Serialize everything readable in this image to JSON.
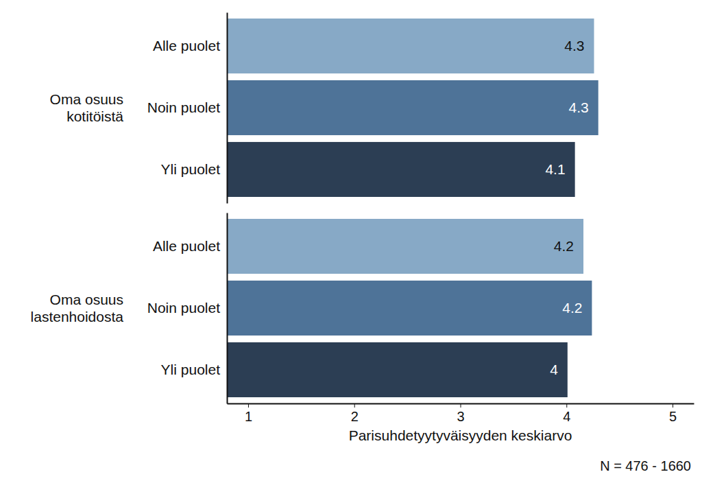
{
  "chart_data": [
    {
      "type": "bar",
      "orientation": "horizontal",
      "title": "Oma osuus kotitöistä",
      "categories": [
        "Alle puolet",
        "Noin puolet",
        "Yli puolet"
      ],
      "values": [
        4.26,
        4.3,
        4.08
      ],
      "value_labels": [
        "4.3",
        "4.3",
        "4.1"
      ],
      "colors": [
        "#87a9c6",
        "#4e7398",
        "#2c3e54"
      ],
      "xlim": [
        0.8,
        5.2
      ],
      "data_labels": true,
      "tick_labels": false,
      "grid": false
    },
    {
      "type": "bar",
      "orientation": "horizontal",
      "title": "Oma osuus lastenhoidosta",
      "categories": [
        "Alle puolet",
        "Noin puolet",
        "Yli puolet"
      ],
      "values": [
        4.16,
        4.24,
        4.01
      ],
      "value_labels": [
        "4.2",
        "4.2",
        "4"
      ],
      "colors": [
        "#87a9c6",
        "#4e7398",
        "#2c3e54"
      ],
      "xlim": [
        0.8,
        5.2
      ],
      "xticks": [
        1,
        2,
        3,
        4,
        5
      ],
      "xlabel": "Parisuhdetyytyväisyyden keskiarvo",
      "annotations": [
        "N = 476 - 1660"
      ],
      "data_labels": true,
      "tick_labels": "x",
      "grid": false
    }
  ]
}
